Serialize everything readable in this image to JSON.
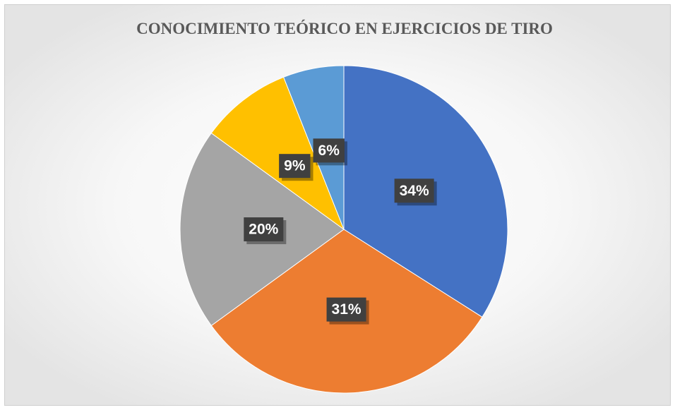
{
  "chart_data": {
    "type": "pie",
    "title": "CONOCIMIENTO TEÓRICO EN EJERCICIOS DE TIRO",
    "values": [
      34,
      31,
      20,
      9,
      6
    ],
    "value_labels": [
      "34%",
      "31%",
      "20%",
      "9%",
      "6%"
    ],
    "colors": [
      "#4472c4",
      "#ed7d31",
      "#a5a5a5",
      "#ffc000",
      "#5b9bd5"
    ]
  }
}
